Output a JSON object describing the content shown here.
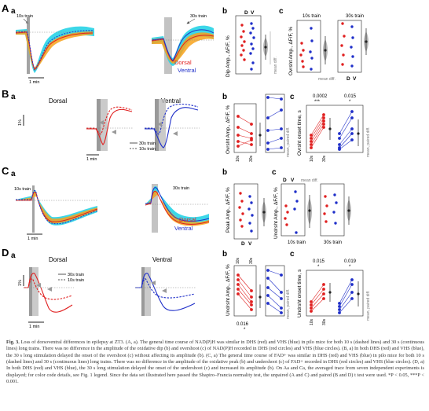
{
  "panels": {
    "A": {
      "letter": "A",
      "label_a": "a",
      "label_b": "b",
      "label_c": "c",
      "train_10s": "10s train",
      "train_30s": "30s train",
      "legend_dorsal": "Dorsal",
      "legend_ventral": "Ventral",
      "scale_time": "1 min",
      "b_ylabel": "Dip Amp., ΔF/F, %",
      "b_groups": [
        "D",
        "V"
      ],
      "b_mean_diff": "mean diff.",
      "c_ylabel": "Ovrsht Amp., ΔF/F, %",
      "c_left_title": "10s train",
      "c_right_title": "30s train",
      "c_groups": [
        "D",
        "V"
      ],
      "c_mean_diff": "mean diff."
    },
    "B": {
      "letter": "B",
      "label_a": "a",
      "label_b": "b",
      "label_c": "c",
      "title_dorsal": "Dorsal",
      "title_ventral": "Ventral",
      "scale_pct": "1%",
      "legend_30s": "30s train",
      "legend_10s": "10s train",
      "scale_time": "1 min",
      "b_ylabel": "Ovrsht Amp., ΔF/F, %",
      "b_mean_diff": "mean, paired diff.",
      "c_ylabel": "Ovrsht onset time, s",
      "c_p_left": "0.0002",
      "c_p_left_stars": "***",
      "c_p_right": "0.015",
      "c_p_right_star": "*",
      "c_mean_diff": "mean, paired diff.",
      "x_10s": "10s",
      "x_30s": "30s"
    },
    "C": {
      "letter": "C",
      "label_a": "a",
      "label_b": "b",
      "label_c": "c",
      "train_10s": "10s train",
      "train_30s": "30s train",
      "legend_dorsal": "Dorsal",
      "legend_ventral": "Ventral",
      "scale_time": "1 min",
      "b_ylabel": "Peak Amp., ΔF/F, %",
      "b_groups": [
        "D",
        "V"
      ],
      "c_ylabel": "Undrsht Amp., ΔF/F, %",
      "c_groups": [
        "D",
        "V"
      ],
      "c_mean_diff": "mean diff.",
      "c_left_title": "10s train",
      "c_right_title": "30s train"
    },
    "D": {
      "letter": "D",
      "label_a": "a",
      "label_b": "b",
      "label_c": "c",
      "title_dorsal": "Dorsal",
      "title_ventral": "Ventral",
      "legend_30s": "30s train",
      "legend_10s": "10s train",
      "scale_pct": "1%",
      "scale_time": "1 min",
      "b_ylabel": "Undrsht Amp., ΔF/F, %",
      "b_p_left": "0.016",
      "b_star": "*",
      "b_mean_diff": "mean, paired diff.",
      "c_ylabel": "Undrsht onset time, s",
      "c_p_left": "0.015",
      "c_p_right": "0.019",
      "c_star": "*",
      "c_mean_diff": "mean, paired diff.",
      "x_10s": "10s",
      "x_30s": "30s"
    }
  },
  "colors": {
    "dorsal": "#e02020",
    "ventral": "#1f2fc9",
    "dorsal_band": "#f7a21b",
    "ventral_band": "#27d3e6",
    "stim_grey": "#bdbdbd",
    "stim_dark": "#8c8c8c"
  },
  "caption": {
    "label": "Fig. 3.",
    "text": "Loss of dorsoventral differences in epilepsy at ZT3. (A, a). The general time course of NAD(P)H was similar in DHS (red) and VHS (blue) in pilo mice for both 10 s (dashed lines) and 30 s (continuous lines) long trains. There was no difference in the amplitude of the oxidative dip (b) and overshoot (c) of NAD(P)H recorded in DHS (red circles) and VHS (blue circles). (B, a) In both DHS (red) and VHS (blue), the 30 s long stimulation delayed the onset of the overshoot (c) without affecting its amplitude (b). (C, a) The general time course of FAD+ was similar in DHS (red) and VHS (blue) in pilo mice for both 10 s (dashed lines) and 30 s (continuous lines) long trains. There was no difference in the amplitude of the oxidative peak (b) and undershoot (c) of FAD+ recorded in DHS (red circles) and VHS (blue circles). (D, a) In both DHS (red) and VHS (blue), the 30 s long stimulation delayed the onset of the undershoot (c) and increased its amplitude (b). On Aa and Ca, the averaged trace from seven independent experiments is displayed; for color code details, see Fig. 1 legend. Since the data set illustrated here passed the Shapiro–Francia normality test, the unpaired (A and C) and paired (B and D) t test were used. *P < 0.05, ***P < 0.001."
  }
}
